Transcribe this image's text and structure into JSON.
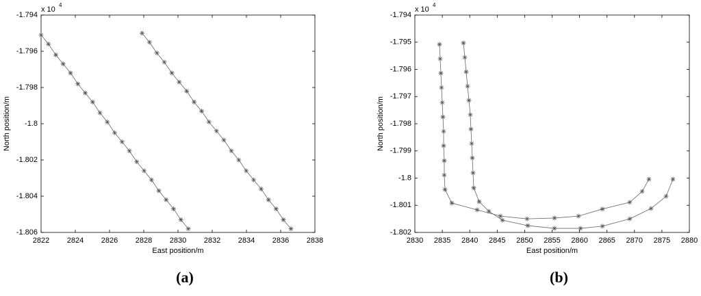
{
  "chart_data": [
    {
      "type": "line",
      "caption": "(a)",
      "x_label": "East position/m",
      "y_label": "North position/m",
      "y_scale_base": "x 10",
      "y_scale_exponent": "4",
      "marker": "*",
      "xlim": [
        2822,
        2838
      ],
      "xticks": [
        2822,
        2824,
        2826,
        2828,
        2830,
        2832,
        2834,
        2836,
        2838
      ],
      "ylim": [
        -1.806,
        -1.794
      ],
      "yticks": [
        -1.806,
        -1.804,
        -1.802,
        -1.8,
        -1.798,
        -1.796,
        -1.794
      ],
      "series": [
        {
          "color": "#666666",
          "x": [
            2822.0,
            2822.43,
            2822.86,
            2823.29,
            2823.72,
            2824.15,
            2824.58,
            2825.01,
            2825.44,
            2825.87,
            2826.3,
            2826.73,
            2827.16,
            2827.59,
            2828.02,
            2828.45,
            2828.88,
            2829.31,
            2829.74,
            2830.17,
            2830.6
          ],
          "values": [
            -1.7951,
            -1.7956,
            -1.7962,
            -1.7967,
            -1.7972,
            -1.7978,
            -1.7983,
            -1.7988,
            -1.7994,
            -1.7999,
            -1.8005,
            -1.801,
            -1.8015,
            -1.8021,
            -1.8026,
            -1.8031,
            -1.8037,
            -1.8042,
            -1.8047,
            -1.8053,
            -1.8058
          ]
        },
        {
          "color": "#666666",
          "x": [
            2827.9,
            2828.33,
            2828.77,
            2829.2,
            2829.64,
            2830.07,
            2830.51,
            2830.94,
            2831.38,
            2831.81,
            2832.25,
            2832.68,
            2833.12,
            2833.55,
            2833.99,
            2834.42,
            2834.86,
            2835.29,
            2835.73,
            2836.16,
            2836.6
          ],
          "values": [
            -1.795,
            -1.7955,
            -1.7961,
            -1.7966,
            -1.7972,
            -1.7977,
            -1.7982,
            -1.7988,
            -1.7993,
            -1.7999,
            -1.8004,
            -1.8009,
            -1.8015,
            -1.802,
            -1.8026,
            -1.8031,
            -1.8036,
            -1.8042,
            -1.8047,
            -1.8053,
            -1.8058
          ]
        }
      ]
    },
    {
      "type": "line",
      "caption": "(b)",
      "x_label": "East position/m",
      "y_label": "North position/m",
      "y_scale_base": "x 10",
      "y_scale_exponent": "4",
      "marker": "*",
      "xlim": [
        2830,
        2880
      ],
      "xticks": [
        2830,
        2835,
        2840,
        2845,
        2850,
        2855,
        2860,
        2865,
        2870,
        2875,
        2880
      ],
      "ylim": [
        -1.802,
        -1.794
      ],
      "yticks": [
        -1.802,
        -1.801,
        -1.8,
        -1.799,
        -1.798,
        -1.797,
        -1.796,
        -1.795,
        -1.794
      ],
      "series": [
        {
          "color": "#666666",
          "x": [
            2834.49,
            2834.61,
            2834.74,
            2834.86,
            2834.99,
            2835.11,
            2835.24,
            2835.24,
            2835.36,
            2835.36,
            2835.49,
            2836.73,
            2841.35,
            2845.59,
            2850.45,
            2855.44,
            2859.8,
            2864.16,
            2869.15,
            2871.4,
            2872.64
          ],
          "values": [
            -1.79508,
            -1.79561,
            -1.79614,
            -1.79667,
            -1.79722,
            -1.79775,
            -1.79828,
            -1.79881,
            -1.79936,
            -1.79989,
            -1.80042,
            -1.80092,
            -1.80117,
            -1.8014,
            -1.8015,
            -1.80147,
            -1.8014,
            -1.80114,
            -1.80089,
            -1.80049,
            -1.80004
          ]
        },
        {
          "color": "#666666",
          "x": [
            2838.85,
            2839.1,
            2839.35,
            2839.6,
            2839.85,
            2840.1,
            2840.22,
            2840.35,
            2840.47,
            2840.6,
            2840.72,
            2841.72,
            2843.47,
            2845.96,
            2850.57,
            2855.44,
            2860.17,
            2864.16,
            2869.15,
            2873.02,
            2875.76,
            2877.01
          ],
          "values": [
            -1.79503,
            -1.79556,
            -1.79609,
            -1.79662,
            -1.79714,
            -1.79767,
            -1.7982,
            -1.79873,
            -1.79926,
            -1.79981,
            -1.80036,
            -1.80087,
            -1.80122,
            -1.80155,
            -1.80175,
            -1.80185,
            -1.80185,
            -1.80177,
            -1.8015,
            -1.80112,
            -1.80067,
            -1.80004
          ]
        }
      ]
    }
  ]
}
